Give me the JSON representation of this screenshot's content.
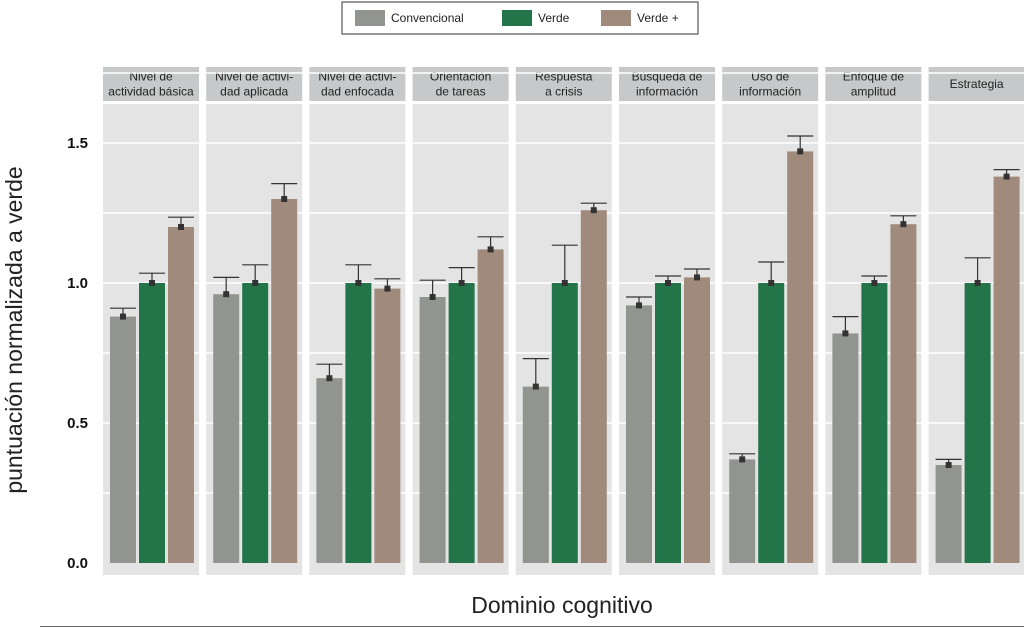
{
  "chart_data": {
    "type": "bar",
    "xlabel": "Dominio cognitivo",
    "ylabel": "puntuación normalizada a verde",
    "ylim": [
      0,
      1.75
    ],
    "yticks": [
      0.0,
      0.5,
      1.0,
      1.5
    ],
    "ytick_labels": [
      "0.0",
      "0.5",
      "1.0",
      "1.5"
    ],
    "grid": true,
    "legend_position": "top-center",
    "series": [
      {
        "name": "Convencional",
        "color": "#929490",
        "values": [
          0.88,
          0.96,
          0.66,
          0.95,
          0.63,
          0.92,
          0.37,
          0.82,
          0.35
        ],
        "error": [
          0.03,
          0.06,
          0.05,
          0.06,
          0.1,
          0.03,
          0.02,
          0.06,
          0.02
        ]
      },
      {
        "name": "Verde",
        "color": "#24744a",
        "values": [
          1.0,
          1.0,
          1.0,
          1.0,
          1.0,
          1.0,
          1.0,
          1.0,
          1.0
        ],
        "error": [
          0.035,
          0.065,
          0.065,
          0.055,
          0.135,
          0.025,
          0.075,
          0.025,
          0.09
        ]
      },
      {
        "name": "Verde +",
        "color": "#a08a7c",
        "values": [
          1.2,
          1.3,
          0.98,
          1.12,
          1.26,
          1.02,
          1.47,
          1.21,
          1.38
        ],
        "error": [
          0.035,
          0.055,
          0.035,
          0.045,
          0.025,
          0.03,
          0.055,
          0.03,
          0.025
        ]
      }
    ],
    "facets": [
      {
        "lines": [
          "Nivel de",
          "actividad básica"
        ]
      },
      {
        "lines": [
          "Nivel de activi-",
          "dad aplicada"
        ]
      },
      {
        "lines": [
          "Nivel de activi-",
          "dad enfocada"
        ]
      },
      {
        "lines": [
          "Orientación",
          "de tareas"
        ]
      },
      {
        "lines": [
          "Respuesta",
          "a crisis"
        ]
      },
      {
        "lines": [
          "Búsqueda de",
          "información"
        ]
      },
      {
        "lines": [
          "Uso de",
          "información"
        ]
      },
      {
        "lines": [
          "Enfoque de",
          "amplitud"
        ]
      },
      {
        "lines": [
          "Estrategia"
        ]
      }
    ]
  }
}
